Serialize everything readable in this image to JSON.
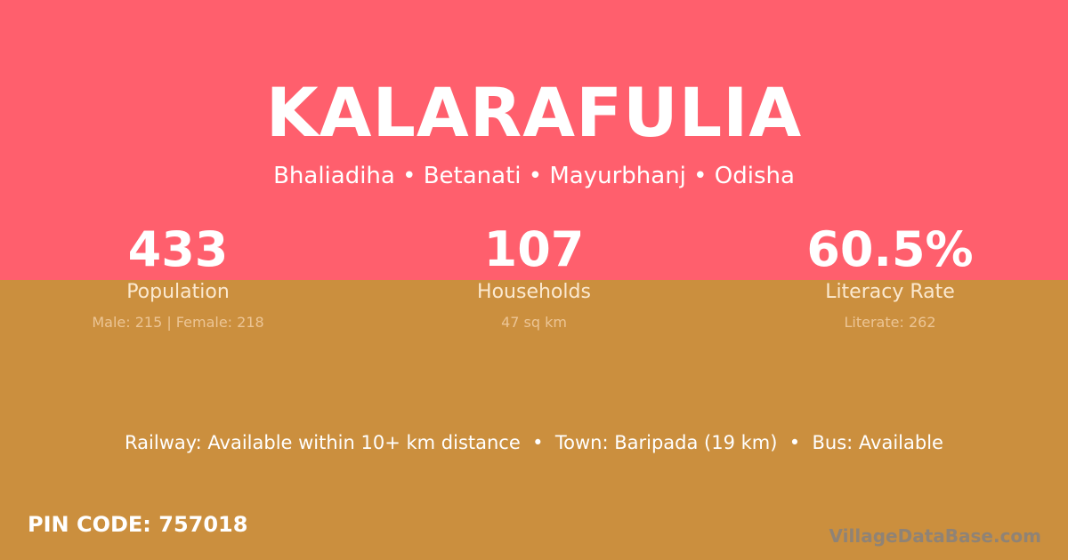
{
  "colors": {
    "top": "#ff5f6d",
    "bottom": "#cb8f3e"
  },
  "village": "KALARAFULIA",
  "location": "Bhaliadiha • Betanati • Mayurbhanj • Odisha",
  "stats": [
    {
      "value": "433",
      "label": "Population",
      "detail": "Male: 215 | Female: 218"
    },
    {
      "value": "107",
      "label": "Households",
      "detail": "47 sq km"
    },
    {
      "value": "60.5%",
      "label": "Literacy Rate",
      "detail": "Literate: 262"
    }
  ],
  "transport": "Railway: Available within 10+ km distance  •  Town: Baripada (19 km)  •  Bus: Available",
  "pin": "PIN CODE: 757018",
  "watermark": "VillageDataBase.com"
}
